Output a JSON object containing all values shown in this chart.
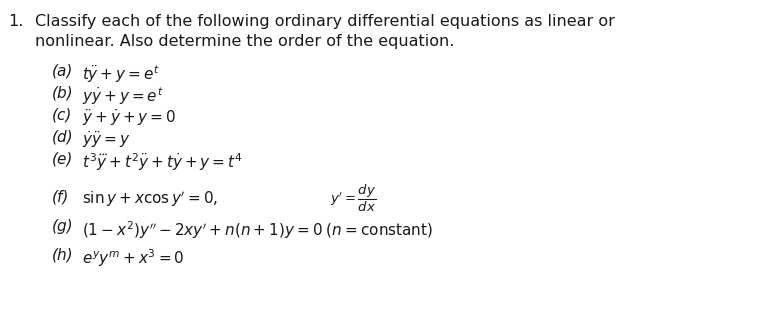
{
  "bg_color": "#ffffff",
  "text_color": "#1a1a1a",
  "title_num": "1.",
  "title_line1": "Classify each of the following ordinary differential equations as linear or",
  "title_line2": "nonlinear. Also determine the order of the equation.",
  "items_labels": [
    "(a)",
    "(b)",
    "(c)",
    "(d)",
    "(e)"
  ],
  "items_eqs": [
    "$t\\dot{\\ddot{y}} + y = e^t$",
    "$y\\dot{y} + y = e^t$",
    "$\\ddot{y} + \\dot{y} + y = 0$",
    "$\\dot{y}\\ddot{y} = y$",
    "$t^3\\dddot{y} + t^2\\ddot{y} + t\\dot{y} + y = t^4$"
  ],
  "f_label": "(f)",
  "f_eq": "$\\sin y + x \\cos y^{\\prime} = 0,$",
  "f_note": "$y^{\\prime} = \\dfrac{dy}{dx}$",
  "g_label": "(g)",
  "g_eq": "$(1 - x^2)y^{\\prime\\prime} - 2xy^{\\prime} + n(n + 1)y = 0 \\; (n = \\mathrm{constant})$",
  "h_label": "(h)",
  "h_eq": "$e^y y^m + x^3 = 0$",
  "fs_title": 11.5,
  "fs_body": 11.0,
  "fs_note": 9.5
}
